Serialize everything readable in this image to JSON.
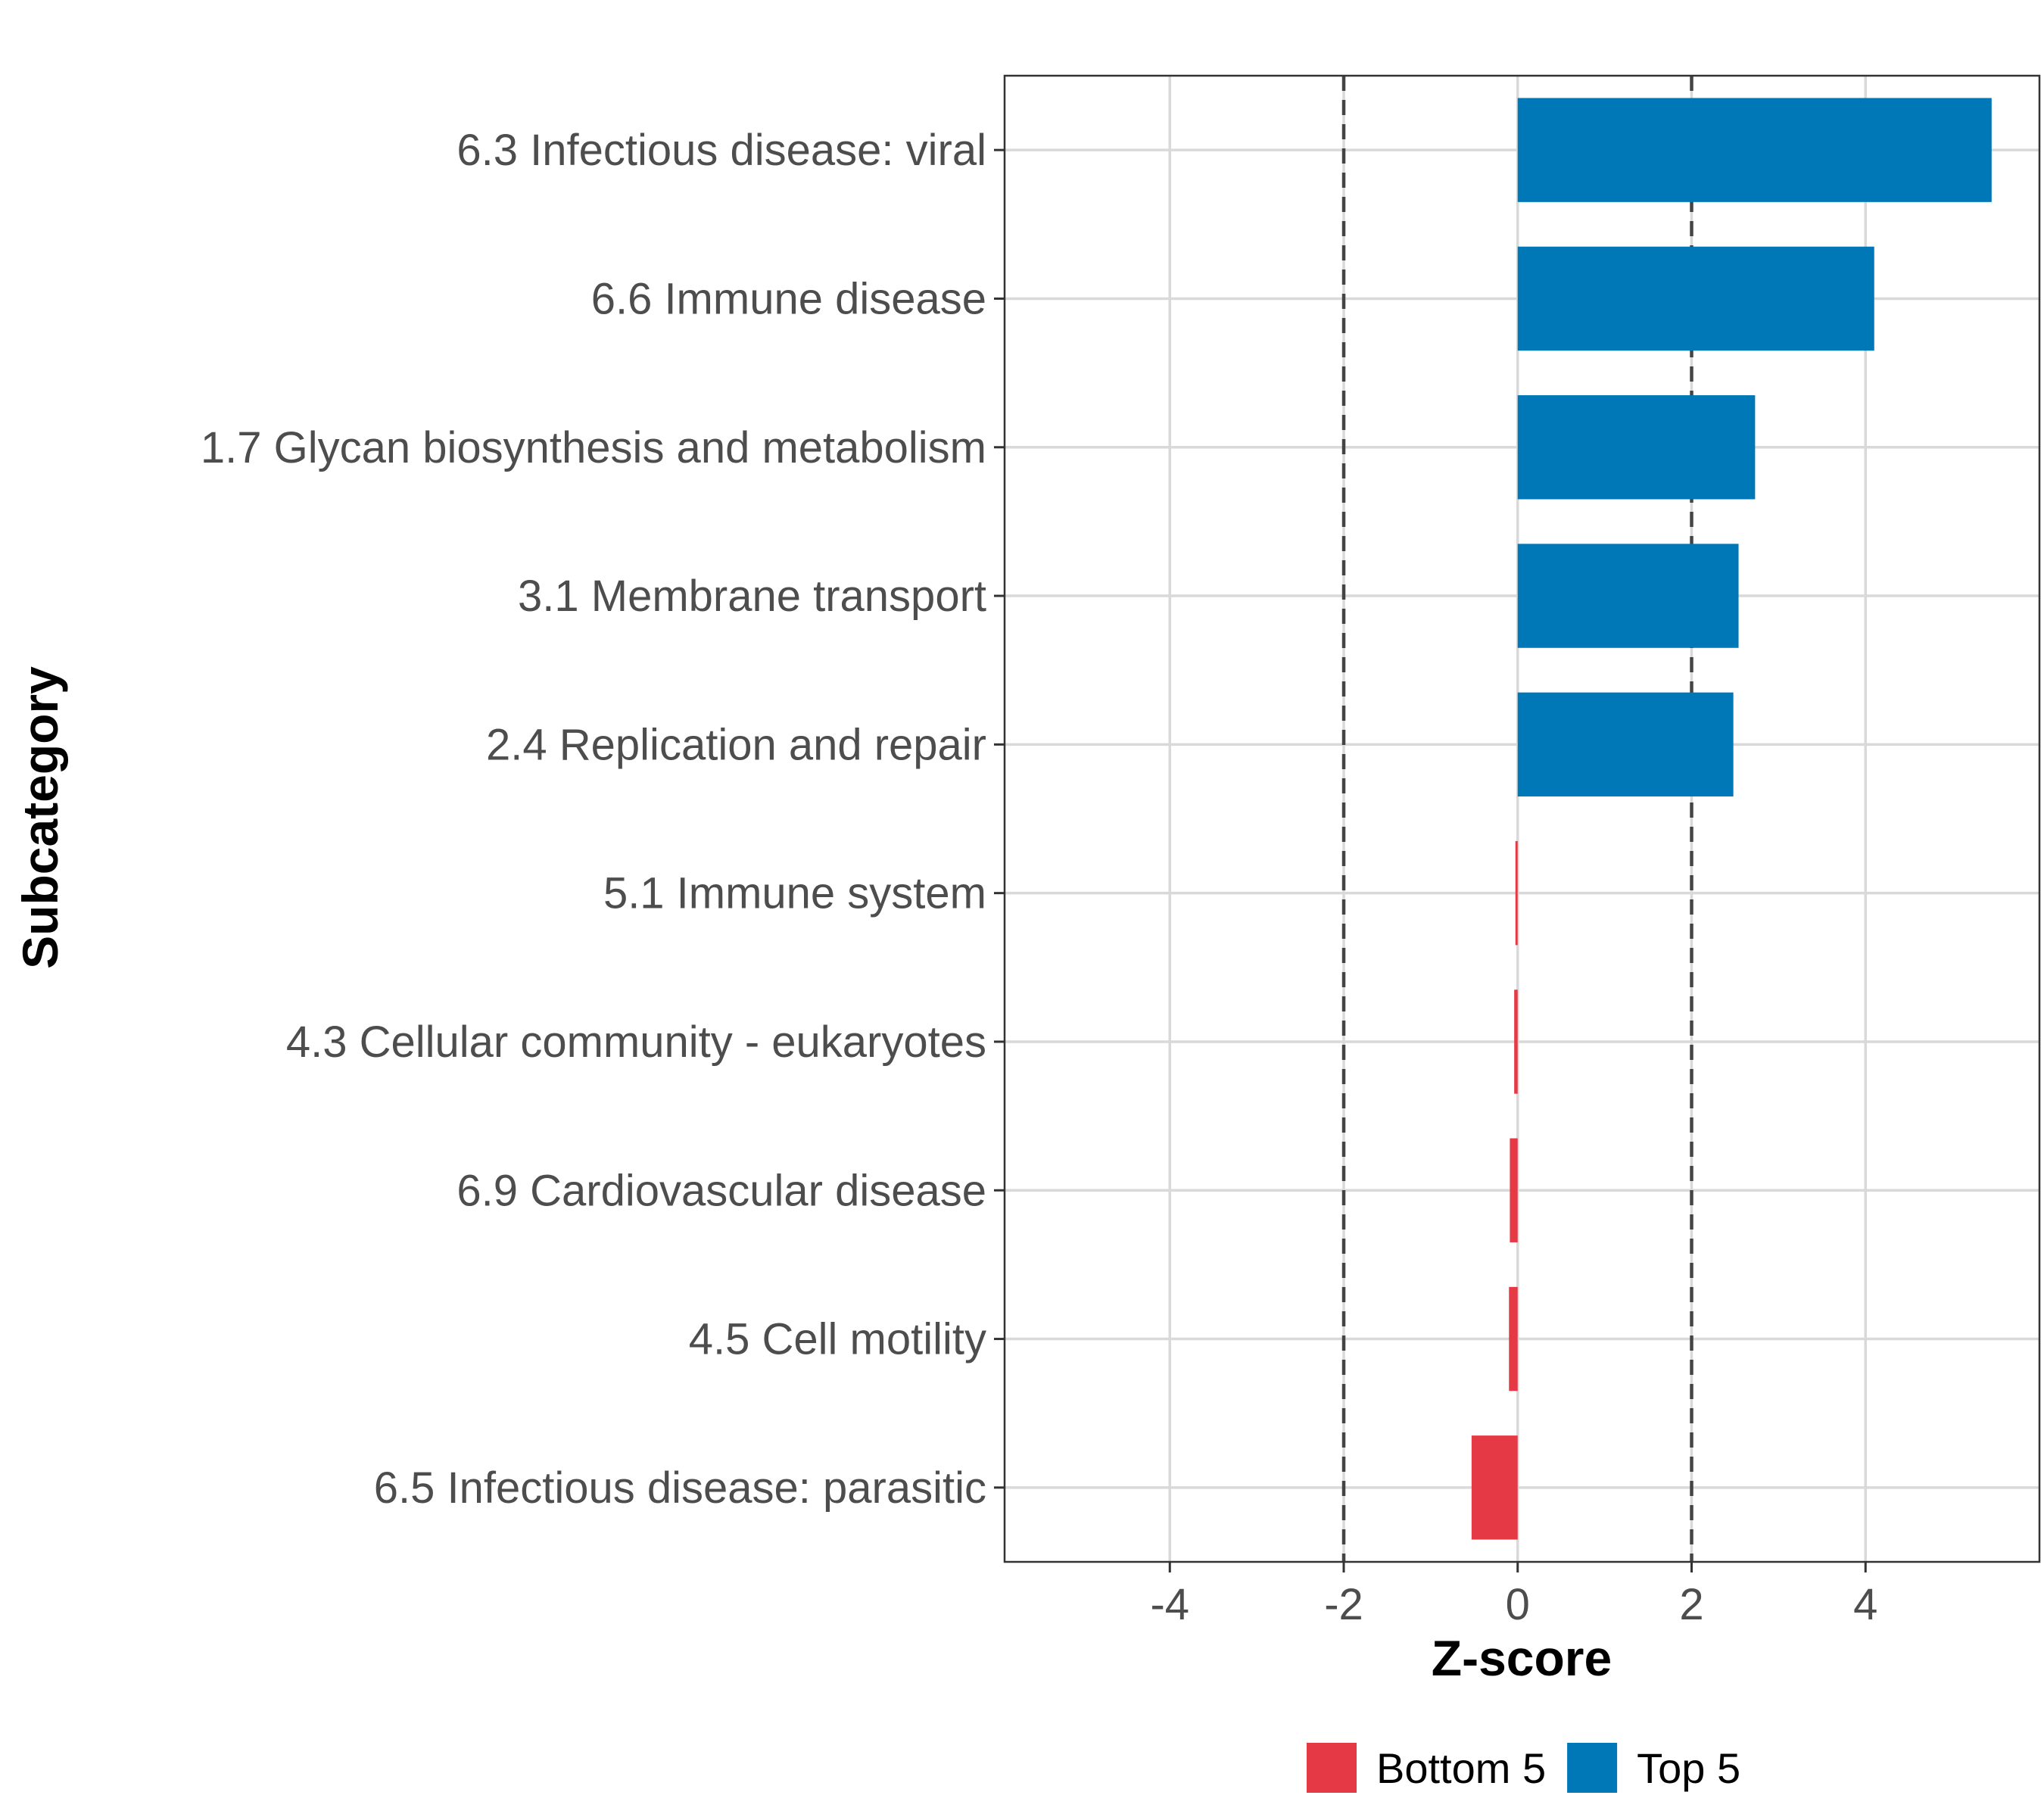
{
  "chart_data": {
    "type": "bar",
    "orientation": "horizontal",
    "title": "",
    "xlabel": "Z-score",
    "ylabel": "Subcategory",
    "xlim": [
      -5.9,
      6.0
    ],
    "xticks": [
      -4,
      -2,
      0,
      2,
      4
    ],
    "xtick_labels": [
      "-4",
      "-2",
      "0",
      "2",
      "4"
    ],
    "reference_lines": [
      -2,
      2
    ],
    "grid": true,
    "legend_position": "bottom",
    "categories": [
      "6.3 Infectious disease: viral",
      "6.6 Immune disease",
      "1.7 Glycan biosynthesis and metabolism",
      "3.1 Membrane transport",
      "2.4 Replication and repair",
      "5.1 Immune system",
      "4.3 Cellular community - eukaryotes",
      "6.9 Cardiovascular disease",
      "4.5 Cell motility",
      "6.5 Infectious disease: parasitic"
    ],
    "values": [
      5.45,
      4.1,
      2.73,
      2.54,
      2.48,
      -0.02,
      -0.04,
      -0.09,
      -0.1,
      -0.53
    ],
    "groups": [
      "Top 5",
      "Top 5",
      "Top 5",
      "Top 5",
      "Top 5",
      "Bottom 5",
      "Bottom 5",
      "Bottom 5",
      "Bottom 5",
      "Bottom 5"
    ],
    "legend": [
      {
        "name": "Bottom 5",
        "color": "#e63946"
      },
      {
        "name": "Top 5",
        "color": "#0077b6"
      }
    ]
  }
}
